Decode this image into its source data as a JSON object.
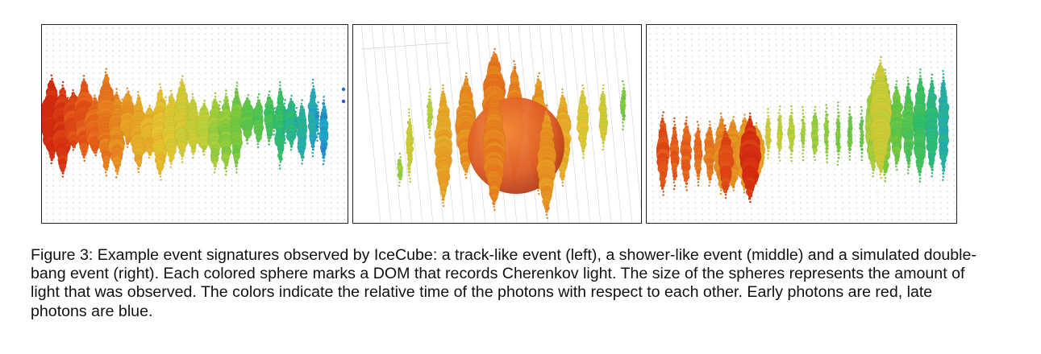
{
  "figure": {
    "caption": "Figure 3: Example event signatures observed by IceCube: a track-like event (left), a shower-like event (middle) and a simulated double-bang event (right). Each colored sphere marks a DOM that records Cherenkov light. The size of the spheres represents the amount of light that was observed. The colors indicate the relative time of the photons with respect to each other. Early photons are red, late photons are blue."
  },
  "colors": {
    "early": "#d42a10",
    "late": "#2233cc",
    "gradient": [
      "#d42a10",
      "#e8611a",
      "#e89a22",
      "#e6c530",
      "#b8d13a",
      "#6cc840",
      "#2fbf6a",
      "#21a6c9",
      "#2a45d0"
    ],
    "string_dots": "#c8c8c8"
  }
}
